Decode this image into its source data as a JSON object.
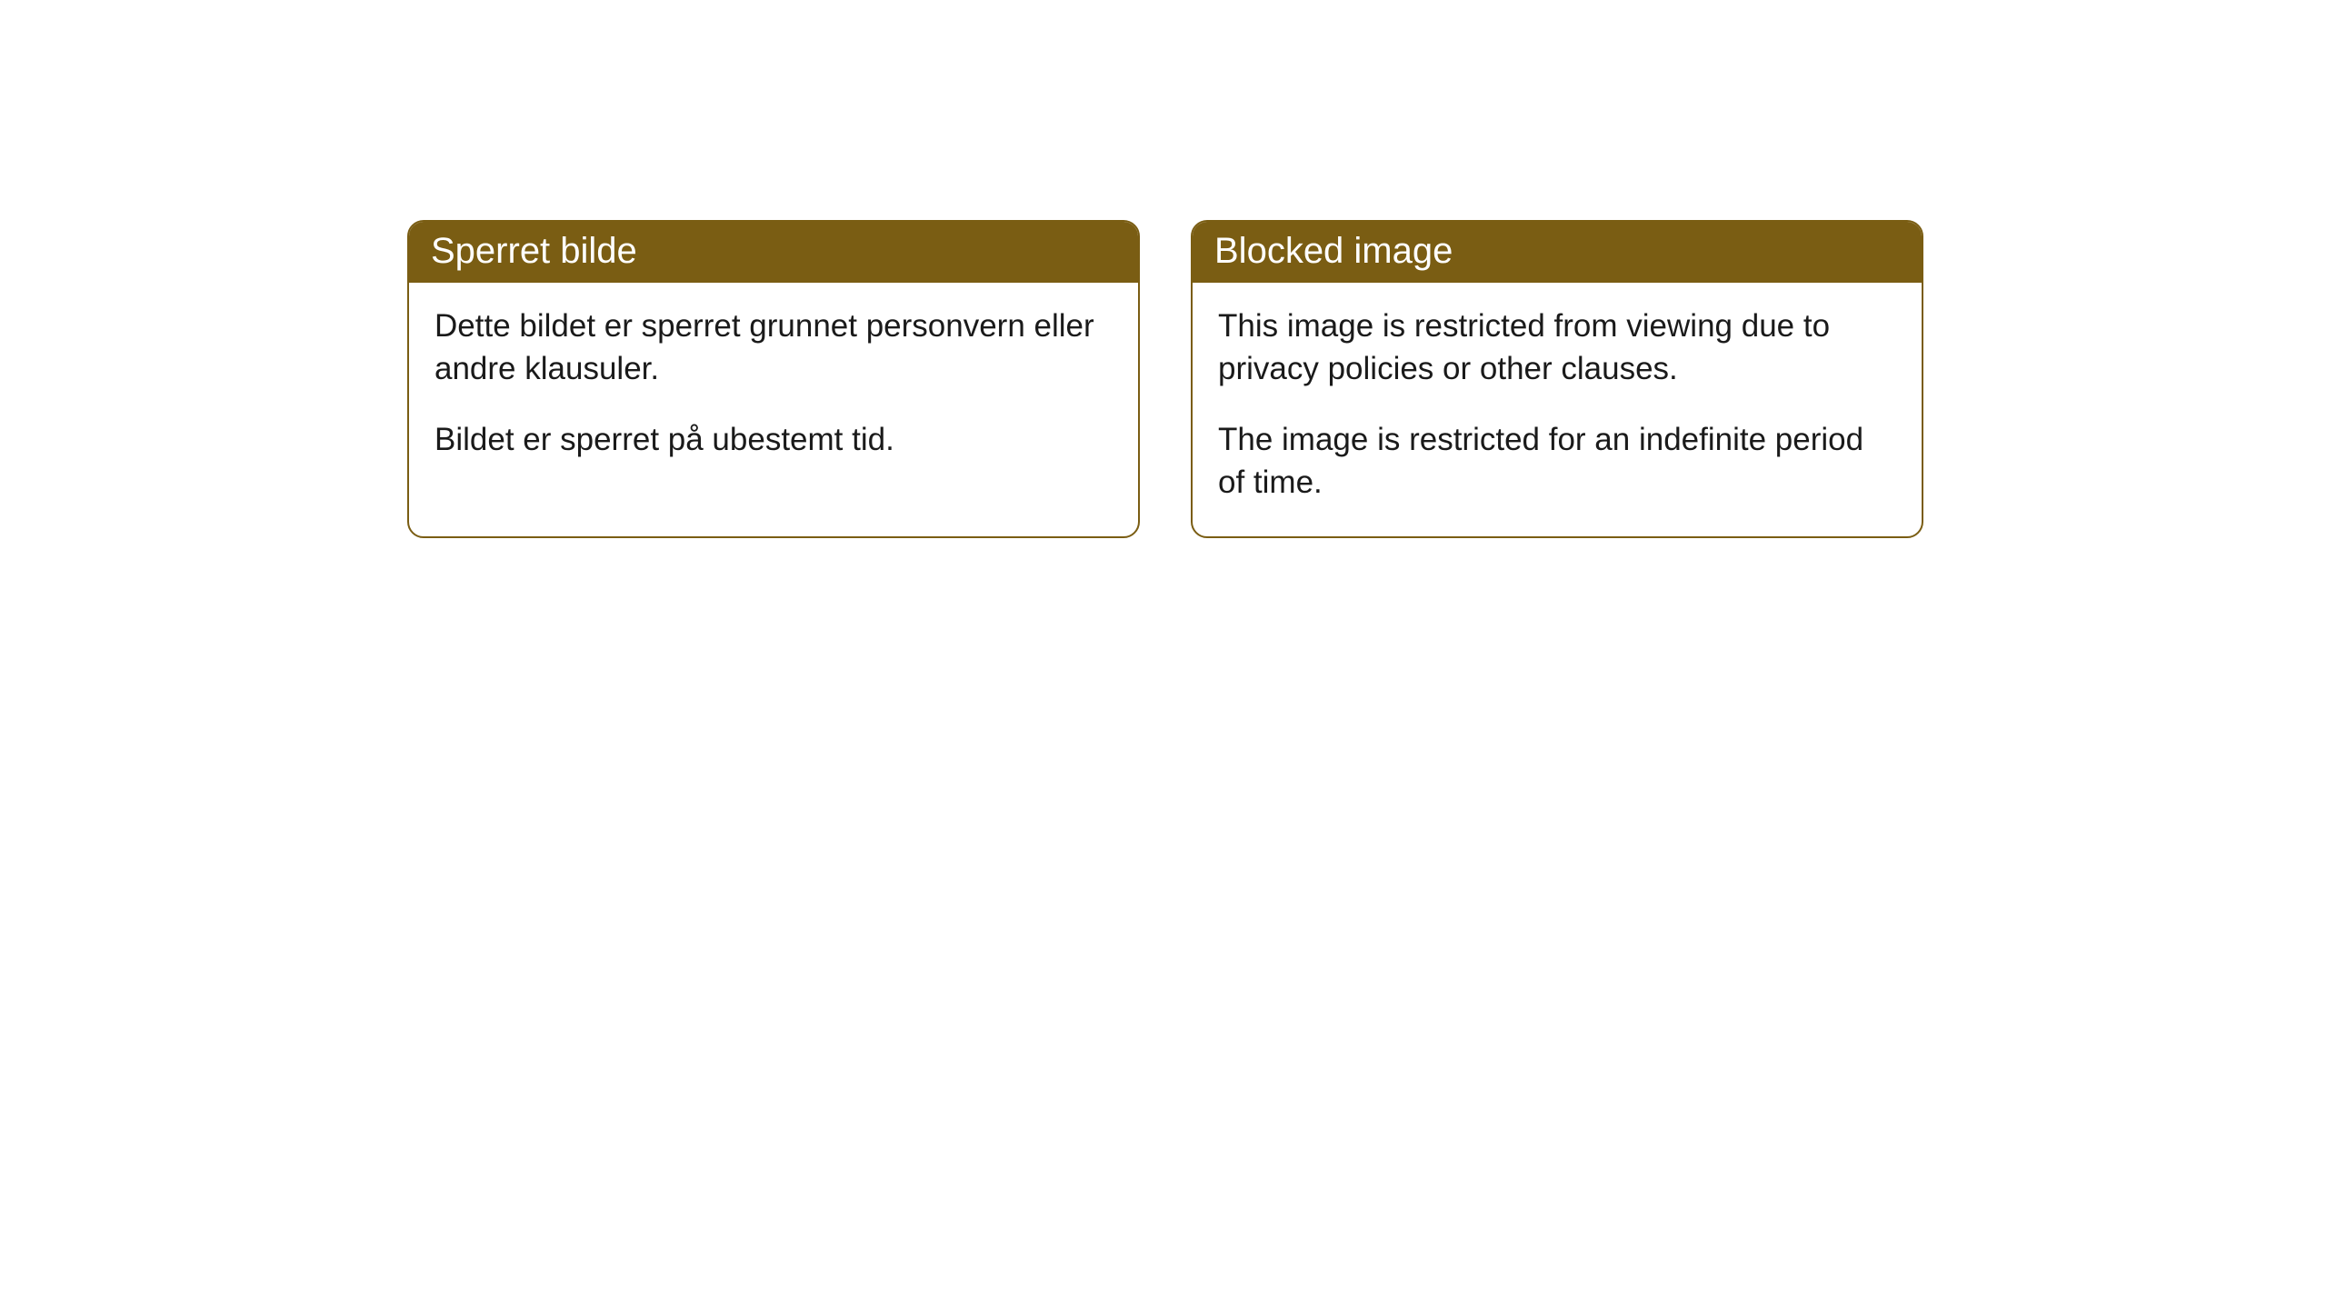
{
  "cards": [
    {
      "title": "Sperret bilde",
      "paragraph1": "Dette bildet er sperret grunnet personvern eller andre klausuler.",
      "paragraph2": "Bildet er sperret på ubestemt tid."
    },
    {
      "title": "Blocked image",
      "paragraph1": "This image is restricted from viewing due to privacy policies or other clauses.",
      "paragraph2": "The image is restricted for an indefinite period of time."
    }
  ],
  "styling": {
    "header_background": "#7a5d13",
    "header_text_color": "#ffffff",
    "border_color": "#7a5d13",
    "card_background": "#ffffff",
    "body_text_color": "#1a1a1a",
    "border_radius": 18,
    "header_fontsize": 40,
    "body_fontsize": 35
  }
}
